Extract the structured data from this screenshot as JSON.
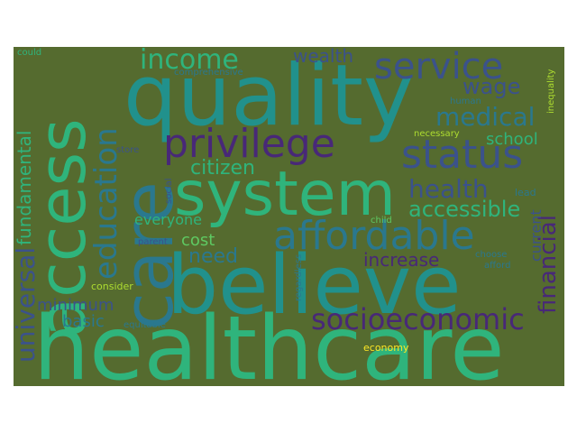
{
  "words": {
    "healthcare": "healthcare",
    "believe": "believe",
    "system": "system",
    "quality": "quality",
    "care": "care",
    "access": "access",
    "privilege": "privilege",
    "affordable": "affordable",
    "status": "status",
    "service": "service",
    "socioeconomic": "socioeconomic",
    "income": "income",
    "education": "education",
    "medical": "medical",
    "health": "health",
    "accessible": "accessible",
    "citizen": "citizen",
    "financial": "financial",
    "universal": "universal",
    "fundamental": "fundamental",
    "wage": "wage",
    "wealth": "wealth",
    "school": "school",
    "increase": "increase",
    "need": "need",
    "cost": "cost",
    "minimum": "minimum",
    "basic": "basic",
    "everyone": "everyone",
    "current": "current",
    "economy": "economy",
    "consider": "consider",
    "necessary": "necessary",
    "child": "child",
    "lead": "lead",
    "inequality": "inequality",
    "human": "human",
    "comprehensive": "comprehensive",
    "could": "could",
    "regardless": "regardless",
    "equitable": "equitable",
    "parent": "parent",
    "choose": "choose",
    "afford": "afford",
    "social": "social",
    "store": "store"
  },
  "colors": {
    "background": "#556b2f",
    "teal_green": "#2fb47c",
    "teal": "#21918c",
    "blue_teal": "#2a788e",
    "blue": "#3b528b",
    "dark_purple": "#482878",
    "deep_purple": "#440154",
    "light_green": "#5ec962",
    "yellow_green": "#addc30",
    "yellow": "#fde725"
  }
}
